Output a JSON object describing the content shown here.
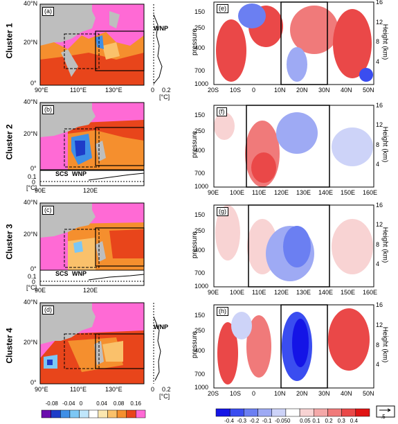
{
  "clusters": [
    {
      "label": "Cluster 1",
      "map_tag": "(a)",
      "section_tag": "(e)",
      "side_label": "WNP"
    },
    {
      "label": "Cluster 2",
      "map_tag": "(b)",
      "section_tag": "(f)",
      "bottom_labels": [
        "SCS",
        "WNP"
      ]
    },
    {
      "label": "Cluster 3",
      "map_tag": "(c)",
      "section_tag": "(g)",
      "bottom_labels": [
        "SCS",
        "WNP"
      ]
    },
    {
      "label": "Cluster 4",
      "map_tag": "(d)",
      "section_tag": "(h)",
      "side_label": "WNP"
    }
  ],
  "map_axes": {
    "lat_ticks": [
      "40°N",
      "20°N",
      "0°"
    ],
    "lon_ticks_full": [
      "90°E",
      "110°E",
      "130°E"
    ],
    "lon_ticks_short": [
      "90E",
      "120E"
    ],
    "side_ticks": [
      "0",
      "0.2"
    ],
    "side_unit": "[°C]",
    "bottom_ticks": [
      "0.1",
      "0",
      "0°"
    ],
    "bottom_unit": "[°C]"
  },
  "section_axes": {
    "pressure_label": "pressure",
    "height_label": "Height (km)",
    "pressure_ticks": [
      "150",
      "250",
      "400",
      "700",
      "1000"
    ],
    "height_ticks": [
      "16",
      "12",
      "8",
      "4"
    ],
    "lat_ticks": [
      "20S",
      "10S",
      "0",
      "10N",
      "20N",
      "30N",
      "40N",
      "50N"
    ],
    "lon_ticks": [
      "90E",
      "100E",
      "110E",
      "120E",
      "130E",
      "140E",
      "150E",
      "160E"
    ]
  },
  "colorbar_left": {
    "labels": [
      "-0.08",
      "-0.04",
      "0",
      "0.04",
      "0.08",
      "0.16"
    ],
    "colors": [
      "#6a0dad",
      "#1e3cc8",
      "#3f8fe6",
      "#7cc7f5",
      "#bfe6fb",
      "#ffffff",
      "#fbe7b0",
      "#fac16b",
      "#f58f2e",
      "#e8451b",
      "#ff6ad5"
    ]
  },
  "colorbar_right": {
    "labels": [
      "-0.4",
      "-0.3",
      "-0.2",
      "-0.1",
      "-0.05",
      "0",
      "0.05",
      "0.1",
      "0.2",
      "0.3",
      "0.4"
    ],
    "colors": [
      "#1414e6",
      "#3a4df0",
      "#6b7ff2",
      "#9eaaf4",
      "#cdd3f8",
      "#ffffff",
      "#f8d3d3",
      "#f4a8a8",
      "#f07a7a",
      "#ea4848",
      "#e01414"
    ]
  },
  "vector_ref": ".5"
}
